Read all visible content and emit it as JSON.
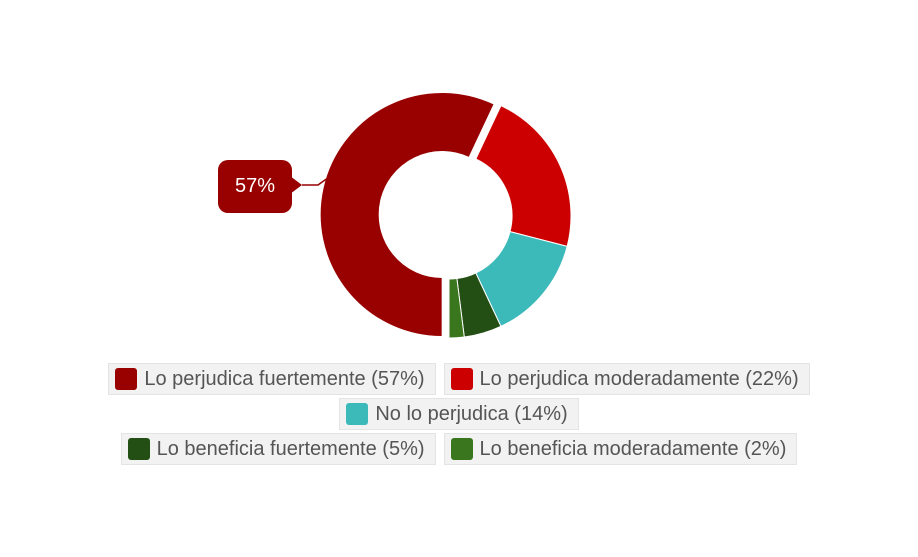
{
  "chart_data": {
    "type": "pie",
    "variant": "donut",
    "slices": [
      {
        "label": "Lo perjudica fuertemente (57%)",
        "value": 57,
        "color": "#990000"
      },
      {
        "label": "Lo perjudica moderadamente (22%)",
        "value": 22,
        "color": "#cc0000"
      },
      {
        "label": "No lo perjudica (14%)",
        "value": 14,
        "color": "#3cb9b9"
      },
      {
        "label": "Lo beneficia fuertemente (5%)",
        "value": 5,
        "color": "#244f14"
      },
      {
        "label": "Lo beneficia moderadamente (2%)",
        "value": 2,
        "color": "#39761d"
      }
    ],
    "highlighted_slice": 0,
    "tooltip": "57%",
    "legend_placement": "bottom"
  }
}
